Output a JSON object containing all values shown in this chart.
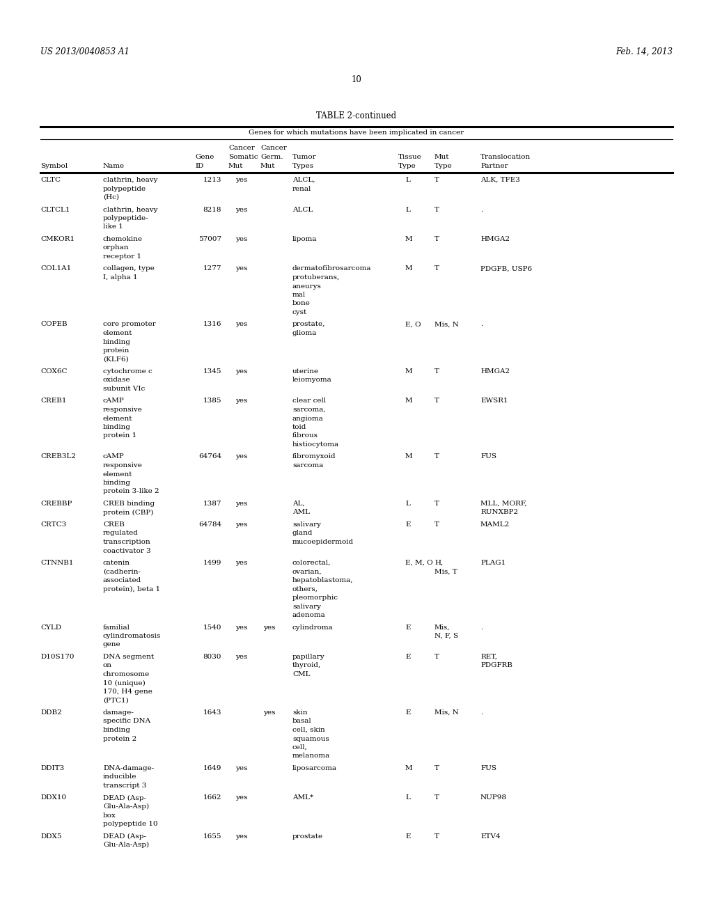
{
  "header_left": "US 2013/0040853 A1",
  "header_right": "Feb. 14, 2013",
  "page_number": "10",
  "table_title": "TABLE 2-continued",
  "table_subtitle": "Genes for which mutations have been implicated in cancer",
  "rows": [
    [
      "CLTC",
      "clathrin, heavy\npolypeptide\n(Hc)",
      "1213",
      "yes",
      "",
      "ALCL,\nrenal",
      "L",
      "T",
      "ALK, TFE3"
    ],
    [
      "CLTCL1",
      "clathrin, heavy\npolypeptide-\nlike 1",
      "8218",
      "yes",
      "",
      "ALCL",
      "L",
      "T",
      "."
    ],
    [
      "CMKOR1",
      "chemokine\norphan\nreceptor 1",
      "57007",
      "yes",
      "",
      "lipoma",
      "M",
      "T",
      "HMGA2"
    ],
    [
      "COL1A1",
      "collagen, type\nI, alpha 1",
      "1277",
      "yes",
      "",
      "dermatofibrosarcoma\nprotuberans,\naneurys\nmal\nbone\ncyst",
      "M",
      "T",
      "PDGFB, USP6"
    ],
    [
      "COPEB",
      "core promoter\nelement\nbinding\nprotein\n(KLF6)",
      "1316",
      "yes",
      "",
      "prostate,\nglioma",
      "E, O",
      "Mis, N",
      "."
    ],
    [
      "COX6C",
      "cytochrome c\noxidase\nsubunit VIc",
      "1345",
      "yes",
      "",
      "uterine\nleiomyoma",
      "M",
      "T",
      "HMGA2"
    ],
    [
      "CREB1",
      "cAMP\nresponsive\nelement\nbinding\nprotein 1",
      "1385",
      "yes",
      "",
      "clear cell\nsarcoma,\nangioma\ntoid\nfibrous\nhistiocytoma",
      "M",
      "T",
      "EWSR1"
    ],
    [
      "CREB3L2",
      "cAMP\nresponsive\nelement\nbinding\nprotein 3-like 2",
      "64764",
      "yes",
      "",
      "fibromyxoid\nsarcoma",
      "M",
      "T",
      "FUS"
    ],
    [
      "CREBBP",
      "CREB binding\nprotein (CBP)",
      "1387",
      "yes",
      "",
      "AL,\nAML",
      "L",
      "T",
      "MLL, MORF,\nRUNXBP2"
    ],
    [
      "CRTC3",
      "CREB\nregulated\ntranscription\ncoactivator 3",
      "64784",
      "yes",
      "",
      "salivary\ngland\nmucoepidermoid",
      "E",
      "T",
      "MAML2"
    ],
    [
      "CTNNB1",
      "catenin\n(cadherin-\nassociated\nprotein), beta 1",
      "1499",
      "yes",
      "",
      "colorectal,\novarian,\nhepatoblastoma,\nothers,\npleomorphic\nsalivary\nadenoma",
      "E, M, O",
      "H,\nMis, T",
      "PLAG1"
    ],
    [
      "CYLD",
      "familial\ncylindromatosis\ngene",
      "1540",
      "yes",
      "yes",
      "cylindroma",
      "E",
      "Mis,\nN, F, S",
      "."
    ],
    [
      "D10S170",
      "DNA segment\non\nchromosome\n10 (unique)\n170, H4 gene\n(PTC1)",
      "8030",
      "yes",
      "",
      "papillary\nthyroid,\nCML",
      "E",
      "T",
      "RET,\nPDGFRB"
    ],
    [
      "DDB2",
      "damage-\nspecific DNA\nbinding\nprotein 2",
      "1643",
      "",
      "yes",
      "skin\nbasal\ncell, skin\nsquamous\ncell,\nmelanoma",
      "E",
      "Mis, N",
      "."
    ],
    [
      "DDIT3",
      "DNA-damage-\ninducible\ntranscript 3",
      "1649",
      "yes",
      "",
      "liposarcoma",
      "M",
      "T",
      "FUS"
    ],
    [
      "DDX10",
      "DEAD (Asp-\nGlu-Ala-Asp)\nbox\npolypeptide 10",
      "1662",
      "yes",
      "",
      "AML*",
      "L",
      "T",
      "NUP98"
    ],
    [
      "DDX5",
      "DEAD (Asp-\nGlu-Ala-Asp)",
      "1655",
      "yes",
      "",
      "prostate",
      "E",
      "T",
      "ETV4"
    ]
  ],
  "bg_color": "#ffffff",
  "text_color": "#000000",
  "font_size": 8.0
}
